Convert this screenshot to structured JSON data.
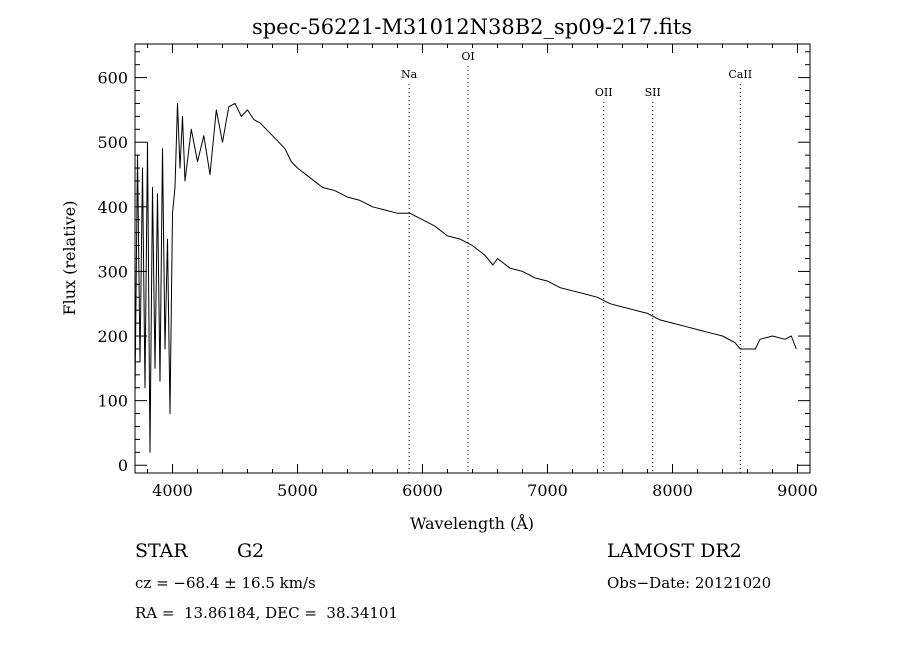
{
  "chart_data": {
    "type": "line",
    "title": "spec-56221-M31012N38B2_sp09-217.fits",
    "xlabel": "Wavelength (Å)",
    "ylabel": "Flux (relative)",
    "xlim": [
      3700,
      9100
    ],
    "ylim": [
      -12,
      652
    ],
    "xticks": [
      4000,
      5000,
      6000,
      7000,
      8000,
      9000
    ],
    "xtick_labels": [
      "4000",
      "5000",
      "6000",
      "7000",
      "8000",
      "9000"
    ],
    "yticks": [
      0,
      100,
      200,
      300,
      400,
      500,
      600
    ],
    "ytick_labels": [
      "0",
      "100",
      "200",
      "300",
      "400",
      "500",
      "600"
    ],
    "grid": false,
    "series": [
      {
        "x": [
          3700,
          3720,
          3740,
          3760,
          3780,
          3800,
          3820,
          3840,
          3860,
          3880,
          3900,
          3920,
          3940,
          3960,
          3980,
          4000,
          4020,
          4040,
          4060,
          4080,
          4100,
          4150,
          4200,
          4250,
          4300,
          4350,
          4400,
          4450,
          4500,
          4550,
          4600,
          4650,
          4700,
          4750,
          4800,
          4850,
          4900,
          4950,
          5000,
          5100,
          5200,
          5300,
          5400,
          5500,
          5600,
          5700,
          5800,
          5900,
          6000,
          6100,
          6200,
          6300,
          6400,
          6500,
          6563,
          6600,
          6700,
          6800,
          6900,
          7000,
          7100,
          7200,
          7300,
          7400,
          7500,
          7600,
          7700,
          7800,
          7900,
          8000,
          8100,
          8200,
          8300,
          8400,
          8498,
          8542,
          8662,
          8700,
          8800,
          8900,
          8950,
          8990
        ],
        "y": [
          110,
          480,
          160,
          460,
          120,
          500,
          20,
          430,
          150,
          420,
          130,
          490,
          180,
          350,
          80,
          390,
          430,
          560,
          460,
          540,
          440,
          520,
          470,
          510,
          450,
          550,
          500,
          555,
          560,
          540,
          550,
          535,
          530,
          520,
          510,
          500,
          490,
          470,
          460,
          445,
          430,
          425,
          415,
          410,
          400,
          395,
          390,
          390,
          380,
          370,
          355,
          350,
          340,
          325,
          310,
          320,
          305,
          300,
          290,
          285,
          275,
          270,
          265,
          260,
          250,
          245,
          240,
          235,
          225,
          220,
          215,
          210,
          205,
          200,
          190,
          180,
          180,
          195,
          200,
          195,
          200,
          180
        ]
      }
    ],
    "annotations": [
      {
        "label": "Na",
        "x": 5893
      },
      {
        "label": "OI",
        "x": 6364
      },
      {
        "label": "OII",
        "x": 7450
      },
      {
        "label": "SII",
        "x": 7842
      },
      {
        "label": "CaII",
        "x": 8542
      }
    ]
  },
  "footer": {
    "object_type": "STAR",
    "subclass": "G2",
    "survey": "LAMOST DR2",
    "velocity": "cz = −68.4 ± 16.5 km/s",
    "obs_date": "Obs−Date: 20121020",
    "coords": "RA =  13.86184, DEC =  38.34101"
  }
}
